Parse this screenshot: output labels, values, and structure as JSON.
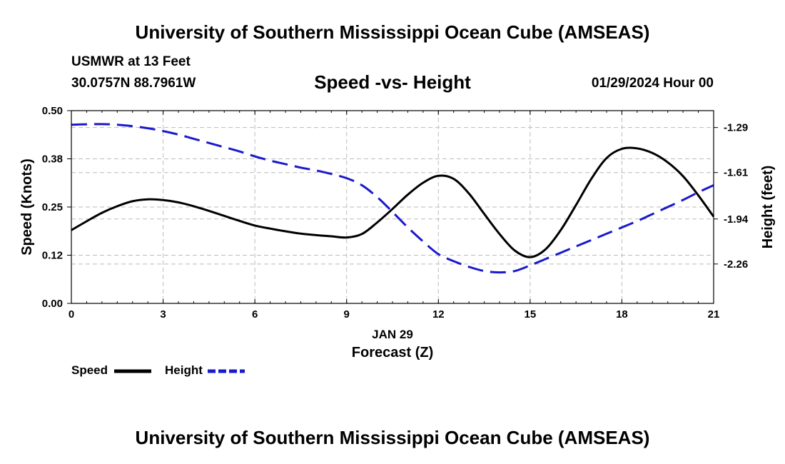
{
  "header": {
    "title": "University of Southern Mississippi Ocean Cube (AMSEAS)",
    "station": "USMWR at 13 Feet",
    "coords": "30.0757N  88.7961W",
    "subtitle": "Speed -vs- Height",
    "datetime": "01/29/2024 Hour 00"
  },
  "footer": {
    "title": "University of Southern Mississippi Ocean Cube (AMSEAS)"
  },
  "legend": {
    "speed_label": "Speed",
    "height_label": "Height"
  },
  "colors": {
    "speed": "#000000",
    "height": "#1a1acc",
    "grid": "#bbbbbb"
  },
  "chart_data": {
    "type": "line",
    "title": "Speed -vs- Height",
    "xlabel": "Forecast (Z)",
    "xlabel_date": "JAN 29",
    "ylabel": "Speed (Knots)",
    "y2label": "Height (feet)",
    "xlim": [
      0,
      21
    ],
    "ylim": [
      0,
      0.5
    ],
    "y2lim": [
      -2.54,
      -1.17
    ],
    "x_ticks": [
      0,
      3,
      6,
      9,
      12,
      15,
      18,
      21
    ],
    "x_tick_labels": [
      "0",
      "3",
      "6",
      "9",
      "12",
      "15",
      "18",
      "21"
    ],
    "y_ticks": [
      0,
      0.125,
      0.25,
      0.375,
      0.5
    ],
    "y_tick_labels": [
      "0.00",
      "0.12",
      "0.25",
      "0.38",
      "0.50"
    ],
    "y2_ticks": [
      -1.29,
      -1.61,
      -1.94,
      -2.26
    ],
    "y2_tick_labels": [
      "-1.29",
      "-1.61",
      "-1.94",
      "-2.26"
    ],
    "grid": true,
    "series": [
      {
        "name": "Speed",
        "axis": "left",
        "style": "solid",
        "x": [
          0,
          0.5,
          1,
          1.5,
          2,
          2.5,
          3,
          3.5,
          4,
          4.5,
          5,
          5.5,
          6,
          6.5,
          7,
          7.5,
          8,
          8.5,
          9,
          9.5,
          10,
          10.5,
          11,
          11.5,
          12,
          12.5,
          13,
          13.5,
          14,
          14.5,
          15,
          15.5,
          16,
          16.5,
          17,
          17.5,
          18,
          18.5,
          19,
          19.5,
          20,
          20.5,
          21
        ],
        "values": [
          0.19,
          0.213,
          0.235,
          0.252,
          0.265,
          0.27,
          0.268,
          0.262,
          0.252,
          0.24,
          0.227,
          0.214,
          0.202,
          0.194,
          0.187,
          0.181,
          0.177,
          0.174,
          0.171,
          0.18,
          0.21,
          0.245,
          0.282,
          0.313,
          0.331,
          0.323,
          0.285,
          0.232,
          0.18,
          0.137,
          0.12,
          0.14,
          0.19,
          0.255,
          0.323,
          0.377,
          0.401,
          0.402,
          0.39,
          0.366,
          0.33,
          0.28,
          0.225
        ]
      },
      {
        "name": "Height",
        "axis": "right",
        "style": "dashed",
        "x": [
          0,
          0.5,
          1,
          1.5,
          2,
          2.5,
          3,
          3.5,
          4,
          4.5,
          5,
          5.5,
          6,
          6.5,
          7,
          7.5,
          8,
          8.5,
          9,
          9.5,
          10,
          10.5,
          11,
          11.5,
          12,
          12.5,
          13,
          13.5,
          14,
          14.5,
          15,
          15.5,
          16,
          16.5,
          17,
          17.5,
          18,
          18.5,
          19,
          19.5,
          20,
          20.5,
          21
        ],
        "values": [
          -1.27,
          -1.267,
          -1.266,
          -1.27,
          -1.28,
          -1.295,
          -1.315,
          -1.34,
          -1.37,
          -1.4,
          -1.43,
          -1.46,
          -1.495,
          -1.525,
          -1.55,
          -1.575,
          -1.595,
          -1.62,
          -1.65,
          -1.7,
          -1.785,
          -1.89,
          -2.0,
          -2.1,
          -2.19,
          -2.24,
          -2.28,
          -2.31,
          -2.32,
          -2.31,
          -2.27,
          -2.225,
          -2.18,
          -2.135,
          -2.09,
          -2.045,
          -2.0,
          -1.955,
          -1.905,
          -1.855,
          -1.805,
          -1.75,
          -1.7
        ]
      }
    ]
  }
}
